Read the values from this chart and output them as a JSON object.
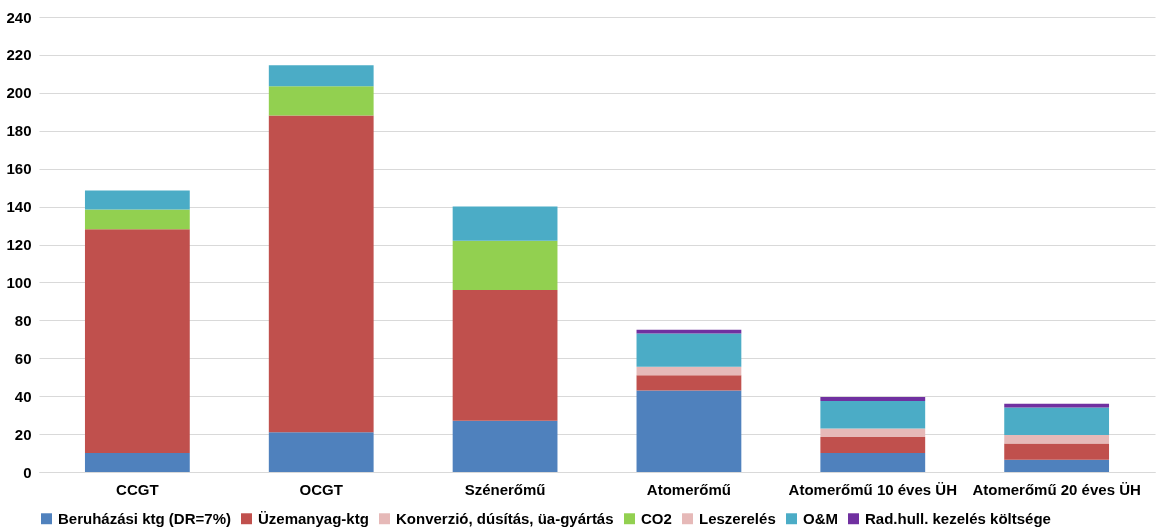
{
  "chart_data": {
    "type": "bar",
    "stacked": true,
    "categories": [
      "CCGT",
      "OCGT",
      "Szénerőmű",
      "Atomerőmű",
      "Atomerőmű 10 éves ÜH",
      "Atomerőmű 20 éves ÜH"
    ],
    "series": [
      {
        "name": "Beruházási ktg (DR=7%)",
        "color": "#4f81bd",
        "values": [
          10,
          21,
          27,
          43,
          10,
          6.5
        ]
      },
      {
        "name": "Üzemanyag-ktg",
        "color": "#c0504d",
        "values": [
          118,
          167,
          69,
          8,
          8.5,
          8.5
        ]
      },
      {
        "name": "Konverzió, dúsítás, üa-gyártás",
        "color": "#e6b9b8",
        "values": [
          null,
          null,
          null,
          4.5,
          4.5,
          4.5
        ]
      },
      {
        "name": "CO2",
        "color": "#92d050",
        "values": [
          10.5,
          15.5,
          26,
          null,
          null,
          null
        ]
      },
      {
        "name": "Leszerelés",
        "color": "#e6b9b8",
        "values": [
          null,
          null,
          null,
          null,
          null,
          null
        ]
      },
      {
        "name": "O&M",
        "color": "#4bacc6",
        "values": [
          10,
          11,
          18,
          17.5,
          14.5,
          14.5
        ]
      },
      {
        "name": "Rad.hull. kezelés költsége",
        "color": "#7030a0",
        "values": [
          null,
          null,
          null,
          2,
          2,
          2
        ]
      }
    ],
    "ylim": [
      0,
      240
    ],
    "yticks": [
      0,
      20,
      40,
      60,
      80,
      100,
      120,
      140,
      160,
      180,
      200,
      220,
      240
    ],
    "grid": "y",
    "legend": "bottom"
  }
}
